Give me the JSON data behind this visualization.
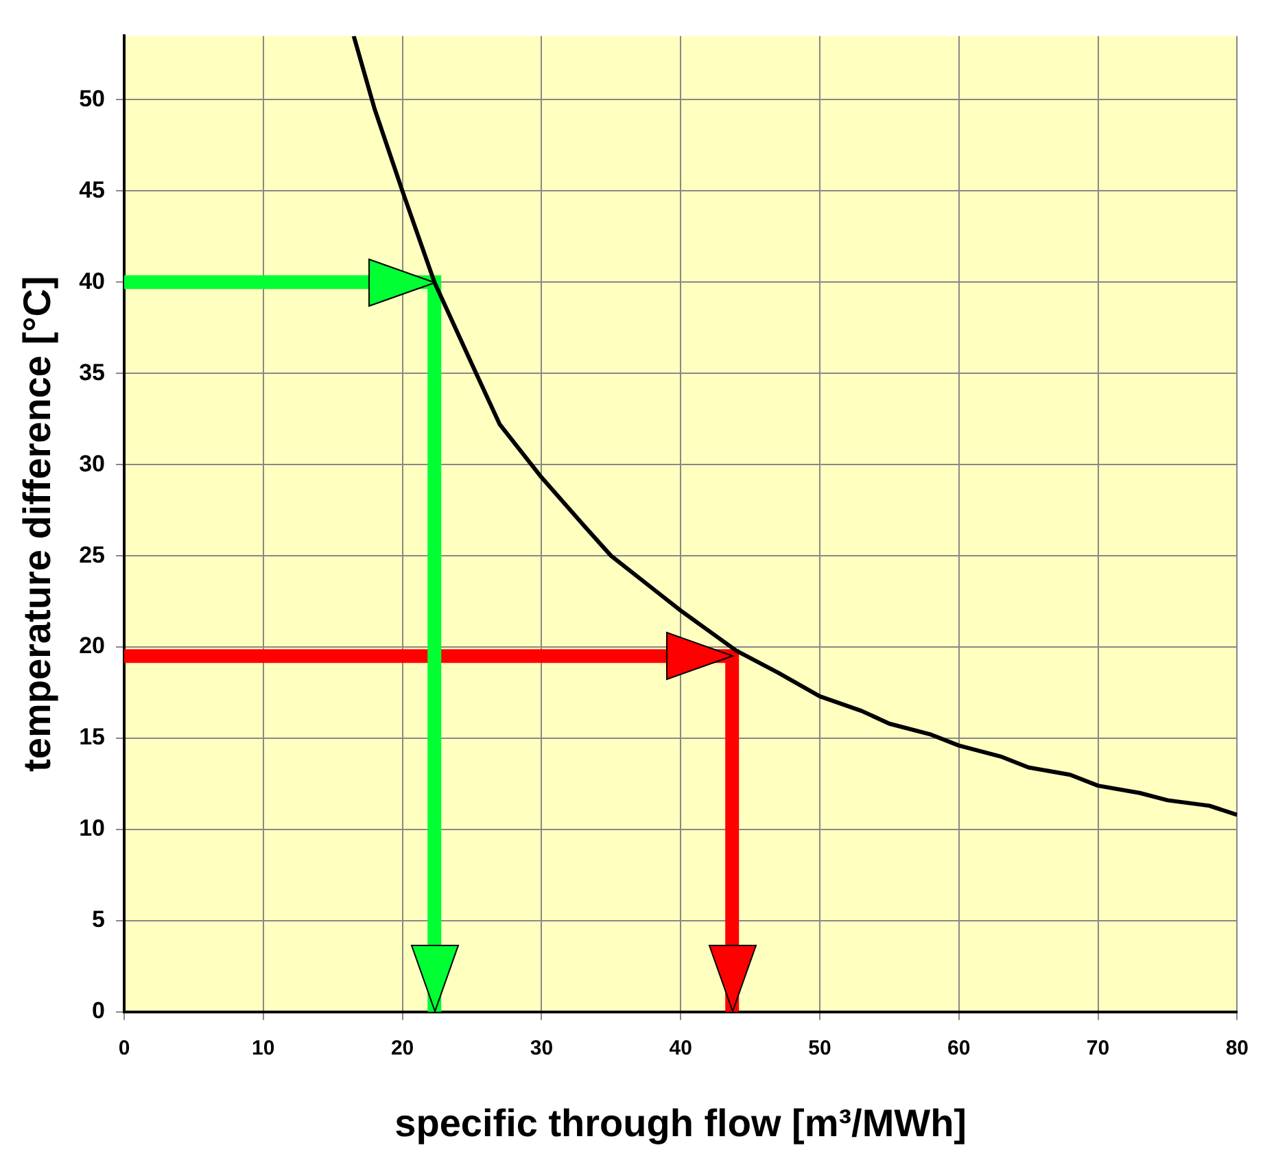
{
  "chart_data": {
    "type": "line",
    "xlabel": "specific through flow [m³/MWh]",
    "ylabel": "temperature difference [°C]",
    "xlim": [
      0,
      80
    ],
    "xticks": [
      0,
      10,
      20,
      30,
      40,
      50,
      60,
      70,
      80
    ],
    "ylim": [
      0,
      53.5
    ],
    "yticks": [
      0,
      5,
      10,
      15,
      20,
      25,
      30,
      35,
      40,
      45,
      50
    ],
    "grid": true,
    "legend": false,
    "marker": "none",
    "series": [
      {
        "color": "#000000",
        "x": [
          16.5,
          18,
          20,
          22.3,
          25,
          27,
          30,
          33,
          35,
          38,
          40,
          42,
          44,
          47,
          50,
          53,
          55,
          58,
          60,
          63,
          65,
          68,
          70,
          73,
          75,
          78,
          80
        ],
        "values": [
          53.5,
          49.5,
          45,
          40,
          35.5,
          32.2,
          29.3,
          26.7,
          25,
          23.2,
          22,
          20.9,
          19.8,
          18.6,
          17.3,
          16.5,
          15.8,
          15.2,
          14.6,
          14,
          13.4,
          13,
          12.4,
          12,
          11.6,
          11.3,
          10.8
        ]
      },
      {
        "color": "#00ff33",
        "x": [
          0,
          22.3,
          22.3
        ],
        "values": [
          40,
          40,
          0
        ]
      },
      {
        "color": "#ff0000",
        "x": [
          0,
          43.7,
          43.7
        ],
        "values": [
          19.5,
          19.5,
          0
        ]
      }
    ]
  }
}
